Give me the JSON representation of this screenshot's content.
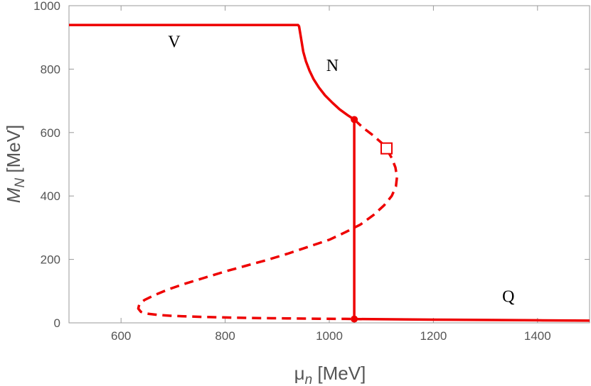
{
  "chart_data": {
    "type": "line",
    "xlabel": "μ",
    "xlabel_sub": "n",
    "xlabel_unit": " [MeV]",
    "ylabel": "M",
    "ylabel_sub": "N",
    "ylabel_unit": " [MeV]",
    "xlim": [
      500,
      1500
    ],
    "ylim": [
      0,
      1000
    ],
    "x_ticks": [
      600,
      800,
      1000,
      1200,
      1400
    ],
    "y_ticks": [
      0,
      200,
      400,
      600,
      800,
      1000
    ],
    "grid": false,
    "color": "#ee0000",
    "series": [
      {
        "style": "solid",
        "x": [
          500,
          940,
          942,
          944,
          947,
          950,
          955,
          962,
          970,
          980,
          992,
          1006,
          1020,
          1035,
          1048
        ],
        "y": [
          939,
          939,
          935,
          915,
          885,
          855,
          825,
          795,
          768,
          742,
          717,
          694,
          673,
          655,
          641
        ]
      },
      {
        "style": "dashed",
        "x": [
          1048,
          1065,
          1085,
          1100,
          1110,
          1120,
          1127,
          1130,
          1128,
          1120,
          1105,
          1085,
          1060,
          1030,
          1000,
          960,
          920,
          880,
          840,
          800,
          760,
          720,
          690,
          665,
          645,
          635,
          633,
          638,
          650,
          670,
          700,
          750,
          800,
          860,
          920,
          980,
          1030,
          1048
        ],
        "y": [
          641,
          615,
          590,
          568,
          548,
          520,
          490,
          460,
          430,
          400,
          370,
          340,
          310,
          285,
          262,
          240,
          218,
          198,
          180,
          162,
          142,
          122,
          105,
          88,
          72,
          58,
          45,
          35,
          29,
          25,
          22,
          19,
          17,
          15,
          14,
          13,
          12.5,
          12
        ]
      },
      {
        "style": "solid",
        "x": [
          1048,
          1048
        ],
        "y": [
          641,
          12
        ]
      },
      {
        "style": "solid",
        "x": [
          1048,
          1200,
          1400,
          1500
        ],
        "y": [
          12,
          10,
          8,
          7
        ]
      }
    ],
    "points": [
      {
        "x": 1048,
        "y": 641
      },
      {
        "x": 1048,
        "y": 12
      }
    ],
    "square_marker": {
      "x": 1110,
      "y": 550
    },
    "annotations": [
      {
        "text": "V",
        "x": 702,
        "y": 887
      },
      {
        "text": "N",
        "x": 1006,
        "y": 812
      },
      {
        "text": "Q",
        "x": 1344,
        "y": 84
      }
    ]
  }
}
